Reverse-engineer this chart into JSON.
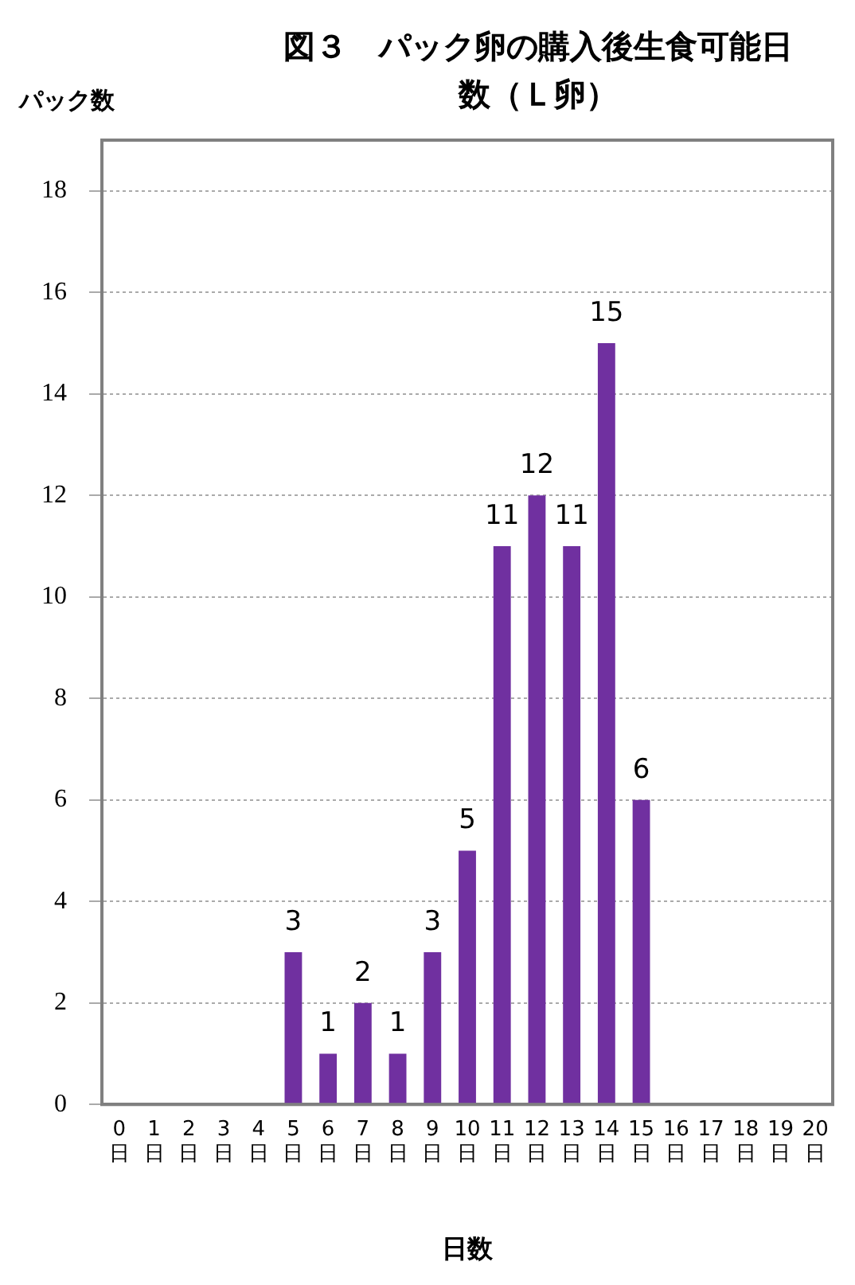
{
  "chart_data": {
    "type": "bar",
    "title": "図３　パック卵の購入後生食可能日数（Ｌ卵）",
    "xlabel": "日数",
    "ylabel": "パック数",
    "categories": [
      "0\n日",
      "1\n日",
      "2\n日",
      "3\n日",
      "4\n日",
      "5\n日",
      "6\n日",
      "7\n日",
      "8\n日",
      "9\n日",
      "10\n日",
      "11\n日",
      "12\n日",
      "13\n日",
      "14\n日",
      "15\n日",
      "16\n日",
      "17\n日",
      "18\n日",
      "19\n日",
      "20\n日"
    ],
    "values": [
      0,
      0,
      0,
      0,
      0,
      3,
      1,
      2,
      1,
      3,
      5,
      11,
      12,
      11,
      15,
      6,
      0,
      0,
      0,
      0,
      0
    ],
    "value_labels": [
      null,
      null,
      null,
      null,
      null,
      "3",
      "1",
      "2",
      "1",
      "3",
      "5",
      "11",
      "12",
      "11",
      "15",
      "6",
      null,
      null,
      null,
      null,
      null
    ],
    "color": "#7030a0",
    "ylim": [
      0,
      19
    ],
    "yticks": [
      0,
      2,
      4,
      6,
      8,
      10,
      12,
      14,
      16,
      18
    ],
    "grid": "y",
    "legend": false
  }
}
